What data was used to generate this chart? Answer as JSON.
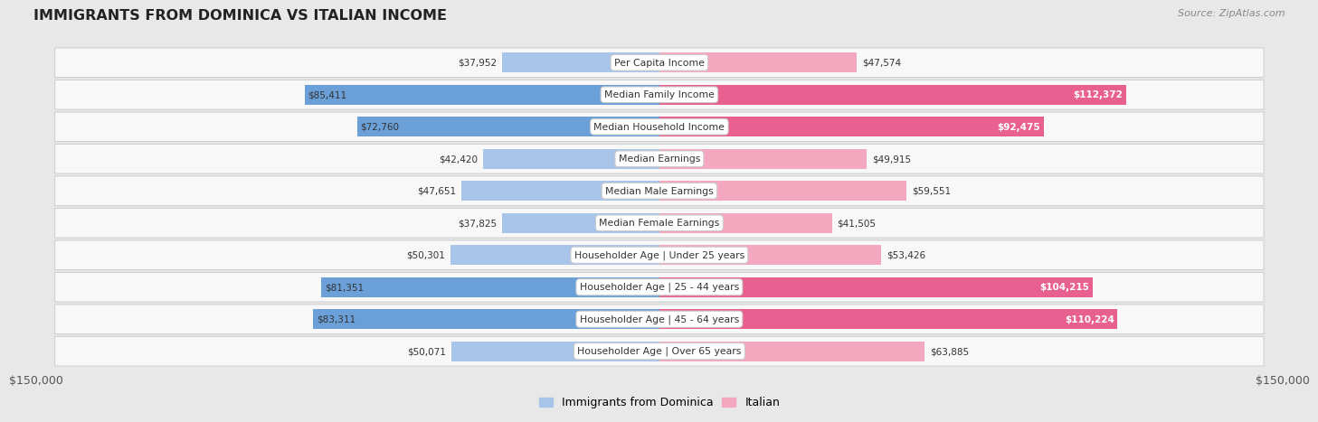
{
  "title": "IMMIGRANTS FROM DOMINICA VS ITALIAN INCOME",
  "source": "Source: ZipAtlas.com",
  "categories": [
    "Per Capita Income",
    "Median Family Income",
    "Median Household Income",
    "Median Earnings",
    "Median Male Earnings",
    "Median Female Earnings",
    "Householder Age | Under 25 years",
    "Householder Age | 25 - 44 years",
    "Householder Age | 45 - 64 years",
    "Householder Age | Over 65 years"
  ],
  "dominica_values": [
    37952,
    85411,
    72760,
    42420,
    47651,
    37825,
    50301,
    81351,
    83311,
    50071
  ],
  "italian_values": [
    47574,
    112372,
    92475,
    49915,
    59551,
    41505,
    53426,
    104215,
    110224,
    63885
  ],
  "dominica_labels": [
    "$37,952",
    "$85,411",
    "$72,760",
    "$42,420",
    "$47,651",
    "$37,825",
    "$50,301",
    "$81,351",
    "$83,311",
    "$50,071"
  ],
  "italian_labels": [
    "$47,574",
    "$112,372",
    "$92,475",
    "$49,915",
    "$59,551",
    "$41,505",
    "$53,426",
    "$104,215",
    "$110,224",
    "$63,885"
  ],
  "dominica_color_light": "#a8c4e8",
  "dominica_color_dark": "#6a9fd8",
  "italian_color_light": "#f4a8c0",
  "italian_color_dark": "#e86090",
  "max_value": 150000,
  "axis_label_left": "$150,000",
  "axis_label_right": "$150,000",
  "legend_dominica": "Immigrants from Dominica",
  "legend_italian": "Italian",
  "bg_color": "#e8e8e8",
  "row_bg_color": "#f8f8f8",
  "row_border_color": "#d0d0d0",
  "dark_threshold": 70000
}
